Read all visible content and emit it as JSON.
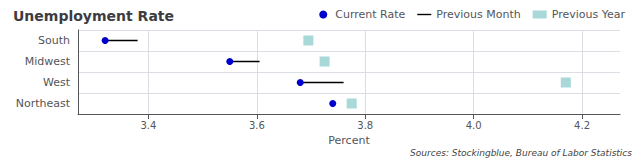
{
  "chart_data": {
    "type": "dot",
    "orientation": "horizontal",
    "title": "Unemployment Rate",
    "xlabel": "Percent",
    "annotations": [
      "Sources: Stockingblue, Bureau of Labor Statistics"
    ],
    "categories": [
      "South",
      "Midwest",
      "West",
      "Northeast"
    ],
    "series": [
      {
        "name": "Current Rate",
        "type": "scatter",
        "marker": "circle",
        "color": "#0000cc",
        "values": [
          3.32,
          3.55,
          3.68,
          3.74
        ]
      },
      {
        "name": "Previous Month",
        "type": "segment",
        "line_style": "solid",
        "color": "#000000",
        "values": [
          3.38,
          3.605,
          3.76,
          3.74
        ]
      },
      {
        "name": "Previous Year",
        "type": "scatter",
        "marker": "square",
        "color": "#a8d8d8",
        "values": [
          3.695,
          3.725,
          4.17,
          3.775
        ]
      }
    ],
    "xlim": [
      3.27,
      4.27
    ],
    "xticks": [
      3.4,
      3.6,
      3.8,
      {
        "value": 4.0,
        "label": "4.0"
      },
      4.2
    ],
    "grid": true,
    "legend": "upper right"
  }
}
